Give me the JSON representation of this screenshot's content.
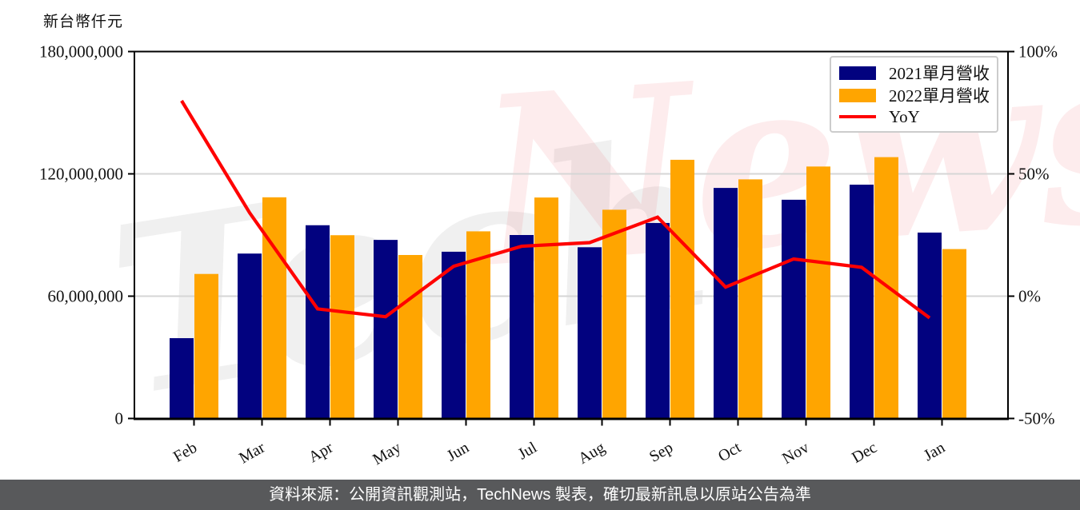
{
  "colors": {
    "bar_2021": "#02027f",
    "bar_2022": "#ffa500",
    "yoy_line": "#ff0000",
    "grid": "#d6d6d6",
    "axis": "#000000",
    "footer_bg": "#58595b",
    "footer_text": "#ffffff"
  },
  "watermark": {
    "text": "TechNews",
    "part_left": "Tech",
    "part_right": "News"
  },
  "legend": {
    "items": [
      {
        "label": "2021單月營收",
        "type": "bar",
        "color": "#02027f"
      },
      {
        "label": "2022單月營收",
        "type": "bar",
        "color": "#ffa500"
      },
      {
        "label": "YoY",
        "type": "line",
        "color": "#ff0000"
      }
    ]
  },
  "footer": {
    "text": "資料來源：公開資訊觀測站，TechNews 製表，確切最新訊息以原站公告為準"
  },
  "chart_data": {
    "type": "bar+line",
    "title": "",
    "categories": [
      "Feb",
      "Mar",
      "Apr",
      "May",
      "Jun",
      "Jul",
      "Aug",
      "Sep",
      "Oct",
      "Nov",
      "Dec",
      "Jan"
    ],
    "series": [
      {
        "name": "2021單月營收",
        "type": "bar",
        "axis": "left",
        "color": "#02027f",
        "values": [
          39400000,
          80900000,
          94800000,
          87600000,
          81800000,
          90000000,
          84000000,
          95900000,
          113100000,
          107300000,
          114700000,
          91200000
        ]
      },
      {
        "name": "2022單月營收",
        "type": "bar",
        "axis": "left",
        "color": "#ffa500",
        "values": [
          70900000,
          108500000,
          89900000,
          80200000,
          91800000,
          108400000,
          102400000,
          126900000,
          117300000,
          123600000,
          128200000,
          83100000
        ]
      },
      {
        "name": "YoY",
        "type": "line",
        "axis": "right",
        "color": "#ff0000",
        "values": [
          79.9,
          34.1,
          -5.2,
          -8.4,
          12.2,
          20.4,
          21.9,
          32.3,
          3.7,
          15.2,
          11.8,
          -8.9
        ]
      }
    ],
    "left_axis": {
      "unit": "新台幣仟元",
      "range": [
        0,
        180000000
      ],
      "ticks": [
        {
          "value": 0,
          "label": "0"
        },
        {
          "value": 60000000,
          "label": "60,000,000"
        },
        {
          "value": 120000000,
          "label": "120,000,000"
        },
        {
          "value": 180000000,
          "label": "180,000,000"
        }
      ]
    },
    "right_axis": {
      "range": [
        -50,
        100
      ],
      "ticks": [
        {
          "value": -50,
          "label": "-50%"
        },
        {
          "value": 0,
          "label": "0%"
        },
        {
          "value": 50,
          "label": "50%"
        },
        {
          "value": 100,
          "label": "100%"
        }
      ]
    },
    "grid": true,
    "legend_position": "top-right"
  }
}
